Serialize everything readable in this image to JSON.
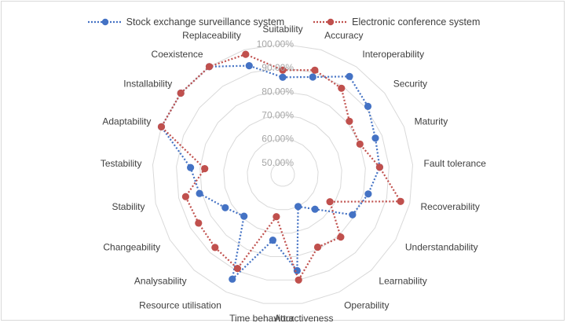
{
  "chart_data": {
    "type": "radar",
    "title": "",
    "categories": [
      "Suitability",
      "Accuracy",
      "Interoperability",
      "Security",
      "Maturity",
      "Fault tolerance",
      "Recoverability",
      "Understandability",
      "Learnability",
      "Operability",
      "Attractiveness",
      "Time behaviour",
      "Resource utilisation",
      "Analysability",
      "Changeability",
      "Stability",
      "Testability",
      "Adaptability",
      "Installability",
      "Coexistence",
      "Replaceability"
    ],
    "r_ticks": [
      "50.00%",
      "60.00%",
      "70.00%",
      "80.00%",
      "90.00%",
      "100.00%"
    ],
    "r_min": 0.45,
    "r_max": 1.0,
    "grid": true,
    "legend_position": "top",
    "series": [
      {
        "name": "Stock exchange surveillance system",
        "color": "#4472c4",
        "values": [
          0.86,
          0.88,
          0.95,
          0.91,
          0.87,
          0.86,
          0.82,
          0.79,
          0.65,
          0.6,
          0.86,
          0.73,
          0.94,
          0.69,
          0.73,
          0.81,
          0.84,
          1.0,
          1.0,
          1.0,
          0.93
        ]
      },
      {
        "name": "Electronic conference system",
        "color": "#c0504d",
        "values": [
          0.89,
          0.91,
          0.89,
          0.81,
          0.8,
          0.86,
          0.96,
          0.68,
          0.81,
          0.79,
          0.9,
          0.63,
          0.89,
          0.87,
          0.86,
          0.87,
          0.78,
          1.0,
          1.0,
          1.0,
          0.98
        ]
      }
    ]
  }
}
